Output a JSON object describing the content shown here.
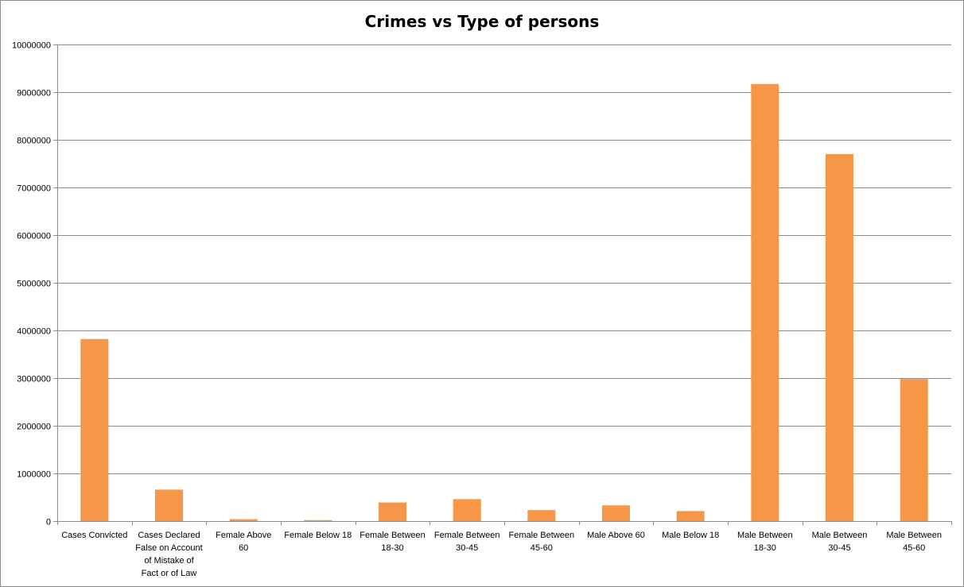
{
  "chart_data": {
    "type": "bar",
    "title": "Crimes vs Type of persons",
    "xlabel": "",
    "ylabel": "",
    "categories": [
      "Cases Convicted",
      "Cases Declared False on Account of Mistake of Fact or of Law",
      "Female Above 60",
      "Female Below 18",
      "Female Between 18-30",
      "Female Between 30-45",
      "Female Between 45-60",
      "Male Above 60",
      "Male Below 18",
      "Male Between 18-30",
      "Male Between 30-45",
      "Male Between 45-60"
    ],
    "category_lines": [
      [
        "Cases Convicted"
      ],
      [
        "Cases Declared",
        "False on Account",
        "of Mistake of",
        "Fact or of Law"
      ],
      [
        "Female Above",
        "60"
      ],
      [
        "Female Below 18"
      ],
      [
        "Female Between",
        "18-30"
      ],
      [
        "Female Between",
        "30-45"
      ],
      [
        "Female Between",
        "45-60"
      ],
      [
        "Male Above 60"
      ],
      [
        "Male Below 18"
      ],
      [
        "Male Between",
        "18-30"
      ],
      [
        "Male Between",
        "30-45"
      ],
      [
        "Male Between",
        "45-60"
      ]
    ],
    "values": [
      3820000,
      660000,
      40000,
      20000,
      390000,
      460000,
      230000,
      330000,
      210000,
      9170000,
      7700000,
      2980000
    ],
    "ylim": [
      0,
      10000000
    ],
    "yticks": [
      0,
      1000000,
      2000000,
      3000000,
      4000000,
      5000000,
      6000000,
      7000000,
      8000000,
      9000000,
      10000000
    ],
    "grid": true,
    "legend": "none",
    "colors": {
      "bar": "#f79646",
      "grid": "#8c8c8c",
      "axis": "#8c8c8c"
    }
  }
}
